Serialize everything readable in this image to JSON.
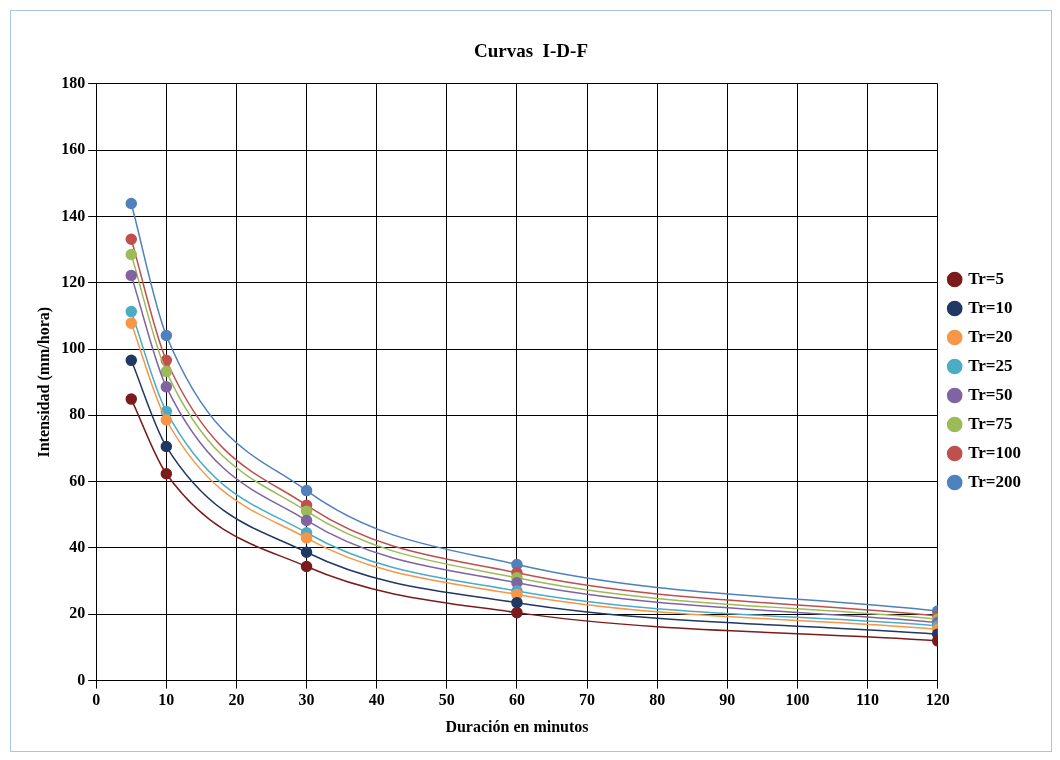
{
  "chart_data": {
    "type": "line",
    "title": "Curvas  I-D-F",
    "xlabel": "Duración en minutos",
    "ylabel": "Intensidad (mm/hora)",
    "x": [
      5,
      10,
      30,
      60,
      120
    ],
    "series": [
      {
        "name": "Tr=200",
        "color": "#4f81bd",
        "values": [
          143.9,
          104.1,
          57.3,
          35,
          21
        ]
      },
      {
        "name": "Tr=100",
        "color": "#c0504d",
        "values": [
          133.1,
          96.6,
          52.9,
          32.5,
          19.5
        ]
      },
      {
        "name": "Tr=75",
        "color": "#9bbb59",
        "values": [
          128.5,
          93.2,
          51.1,
          31,
          18.5
        ]
      },
      {
        "name": "Tr=50",
        "color": "#8064a2",
        "values": [
          122.2,
          88.6,
          48.3,
          29.5,
          17.5
        ]
      },
      {
        "name": "Tr=25",
        "color": "#4bacc6",
        "values": [
          111.3,
          81.2,
          44.6,
          27,
          16.5
        ]
      },
      {
        "name": "Tr=20",
        "color": "#f79646",
        "values": [
          107.8,
          78.6,
          43,
          26,
          15.5
        ]
      },
      {
        "name": "Tr=10",
        "color": "#1f3864",
        "values": [
          96.6,
          70.6,
          38.7,
          23.5,
          14
        ]
      },
      {
        "name": "Tr=5",
        "color": "#7b1c1c",
        "values": [
          84.9,
          62.4,
          34.4,
          20.5,
          12
        ]
      }
    ],
    "xlim": [
      0,
      120
    ],
    "xticks": [
      0,
      10,
      20,
      30,
      40,
      50,
      60,
      70,
      80,
      90,
      100,
      110,
      120
    ],
    "ylim": [
      0,
      180
    ],
    "yticks": [
      0,
      20,
      40,
      60,
      80,
      100,
      120,
      140,
      160,
      180
    ],
    "grid": true,
    "legend": "right",
    "marker": "circle",
    "line_style": "solid"
  }
}
